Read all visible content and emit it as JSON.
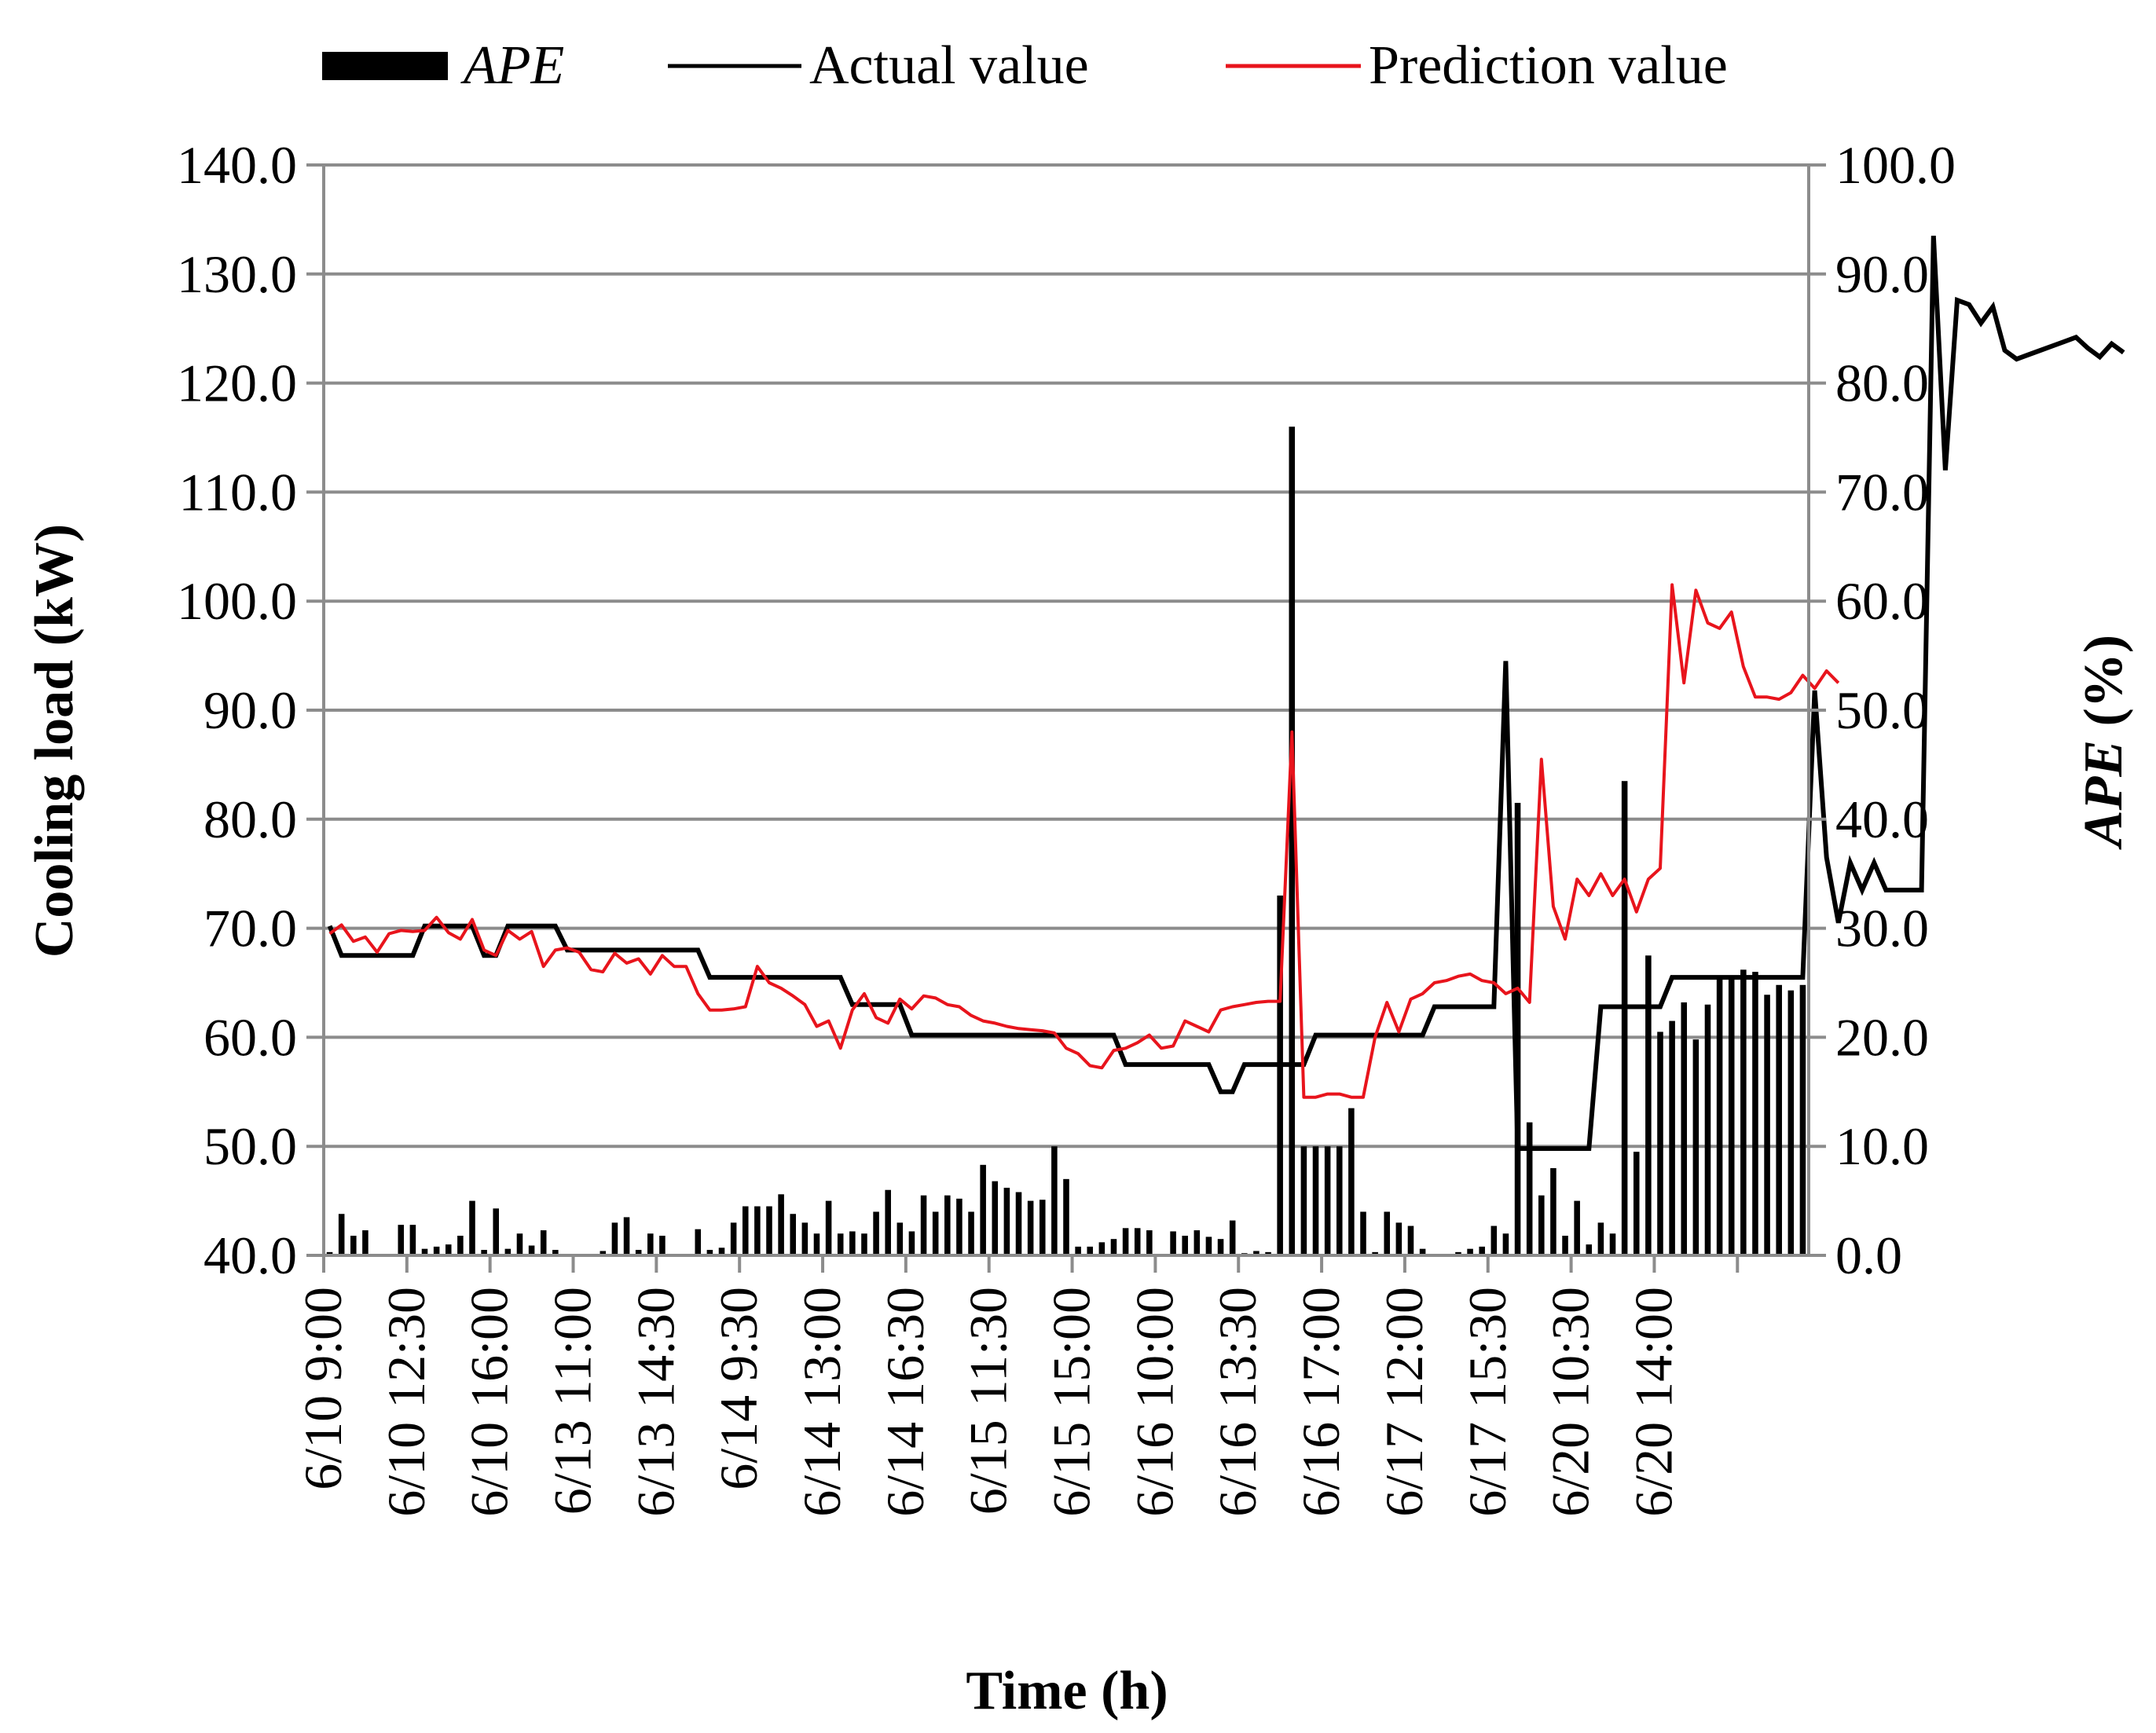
{
  "chart_data": {
    "type": "bar+line",
    "xlabel": "Time (h)",
    "ylabel_left": "Cooling load (kW)",
    "ylabel_right": "APE (%)",
    "ylim_left": [
      40,
      140
    ],
    "ylim_right": [
      0,
      100
    ],
    "left_ticks": [
      "40.0",
      "50.0",
      "60.0",
      "70.0",
      "80.0",
      "90.0",
      "100.0",
      "110.0",
      "120.0",
      "130.0",
      "140.0"
    ],
    "right_ticks": [
      "0.0",
      "10.0",
      "20.0",
      "30.0",
      "40.0",
      "50.0",
      "60.0",
      "70.0",
      "80.0",
      "90.0",
      "100.0"
    ],
    "x_tick_labels": [
      "6/10 9:00",
      "6/10 12:30",
      "6/10 16:00",
      "6/13 11:00",
      "6/13 14:30",
      "6/14 9:30",
      "6/14 13:00",
      "6/14 16:30",
      "6/15 11:30",
      "6/15 15:00",
      "6/16 10:00",
      "6/16 13:30",
      "6/16 17:00",
      "6/17 12:00",
      "6/17 15:30",
      "6/20 10:30",
      "6/20 14:00"
    ],
    "x_tick_every": 7,
    "legend": {
      "ape": "APE",
      "actual": "Actual value",
      "prediction": "Prediction value"
    },
    "colors": {
      "ape": "#000000",
      "actual": "#000000",
      "prediction": "#e8141c",
      "grid": "#8c8c8c"
    },
    "series": [
      {
        "name": "Actual value",
        "axis": "left",
        "values": [
          70.2,
          67.5,
          67.5,
          67.5,
          67.5,
          67.5,
          67.5,
          67.5,
          70.2,
          70.2,
          70.2,
          70.2,
          70.2,
          67.5,
          67.5,
          70.2,
          70.2,
          70.2,
          70.2,
          70.2,
          68.0,
          68.0,
          68.0,
          68.0,
          68.0,
          68.0,
          68.0,
          68.0,
          68.0,
          68.0,
          68.0,
          68.0,
          65.5,
          65.5,
          65.5,
          65.5,
          65.5,
          65.5,
          65.5,
          65.5,
          65.5,
          65.5,
          65.5,
          65.5,
          63.0,
          63.0,
          63.0,
          63.0,
          63.0,
          60.2,
          60.2,
          60.2,
          60.2,
          60.2,
          60.2,
          60.2,
          60.2,
          60.2,
          60.2,
          60.2,
          60.2,
          60.2,
          60.2,
          60.2,
          60.2,
          60.2,
          60.2,
          57.5,
          57.5,
          57.5,
          57.5,
          57.5,
          57.5,
          57.5,
          57.5,
          55.0,
          55.0,
          57.5,
          57.5,
          57.5,
          57.5,
          57.5,
          57.5,
          60.2,
          60.2,
          60.2,
          60.2,
          60.2,
          60.2,
          60.2,
          60.2,
          60.2,
          60.2,
          62.8,
          62.8,
          62.8,
          62.8,
          62.8,
          62.8,
          94.5,
          49.8,
          49.8,
          49.8,
          49.8,
          49.8,
          49.8,
          49.8,
          62.8,
          62.8,
          62.8,
          62.8,
          62.8,
          62.8,
          65.5,
          65.5,
          65.5,
          65.5,
          65.5,
          65.5,
          65.5,
          65.5,
          65.5,
          65.5,
          65.5,
          65.5,
          91.8,
          76.5,
          70.5,
          76.0,
          73.5,
          76.0,
          73.5,
          73.5,
          73.5,
          73.5,
          133.5,
          112.0,
          127.6,
          127.2,
          125.5,
          127.0,
          123.0,
          122.2,
          122.6,
          123.0,
          123.4,
          123.8,
          124.2,
          123.2,
          122.4,
          123.6,
          122.8
        ]
      },
      {
        "name": "Prediction value",
        "axis": "left",
        "values": [
          69.5,
          70.3,
          68.8,
          69.2,
          67.8,
          69.5,
          69.8,
          69.7,
          69.8,
          71.0,
          69.6,
          69.0,
          70.8,
          68.0,
          67.5,
          69.8,
          69.0,
          69.7,
          66.5,
          68.0,
          68.2,
          67.8,
          66.2,
          66.0,
          67.7,
          66.8,
          67.2,
          65.8,
          67.5,
          66.5,
          66.5,
          64.0,
          62.5,
          62.5,
          62.6,
          62.8,
          66.5,
          65.0,
          64.5,
          63.8,
          63.0,
          61.0,
          61.5,
          59.0,
          62.5,
          64.0,
          61.8,
          61.3,
          63.5,
          62.6,
          63.8,
          63.6,
          63.0,
          62.8,
          62.0,
          61.5,
          61.3,
          61.0,
          60.8,
          60.7,
          60.6,
          60.4,
          59.0,
          58.5,
          57.4,
          57.2,
          58.8,
          59.0,
          59.5,
          60.2,
          59.0,
          59.2,
          61.5,
          61.0,
          60.5,
          62.5,
          62.8,
          63.0,
          63.2,
          63.3,
          63.3,
          88.0,
          54.5,
          54.5,
          54.8,
          54.8,
          54.5,
          54.5,
          60.0,
          63.2,
          60.5,
          63.5,
          64.0,
          65.0,
          65.2,
          65.6,
          65.8,
          65.2,
          65.0,
          64.0,
          64.5,
          63.2,
          85.5,
          72.0,
          69.0,
          74.5,
          73.0,
          75.0,
          73.0,
          74.5,
          71.5,
          74.5,
          75.5,
          101.5,
          92.5,
          101.0,
          98.0,
          97.5,
          99.0,
          94.0,
          91.2,
          91.2,
          91.0,
          91.6,
          93.2,
          92.0,
          93.6,
          92.5
        ]
      },
      {
        "name": "APE",
        "axis": "right",
        "type": "bar",
        "values": [
          0.3,
          3.8,
          1.8,
          2.3,
          0.0,
          0.0,
          2.8,
          2.8,
          0.6,
          0.8,
          1.0,
          1.8,
          5.0,
          0.5,
          4.3,
          0.6,
          2.0,
          0.9,
          2.3,
          0.5,
          0.0,
          0.0,
          0.0,
          0.4,
          3.0,
          3.5,
          0.5,
          2.0,
          1.8,
          0.0,
          0.0,
          2.4,
          0.5,
          0.7,
          3.0,
          4.5,
          4.5,
          4.5,
          5.6,
          3.8,
          3.0,
          2.0,
          5.0,
          2.0,
          2.2,
          2.0,
          4.0,
          6.0,
          3.0,
          2.2,
          5.5,
          4.0,
          5.5,
          5.2,
          4.0,
          8.3,
          6.8,
          6.2,
          5.8,
          5.0,
          5.1,
          10.0,
          7.0,
          0.8,
          0.8,
          1.2,
          1.5,
          2.5,
          2.5,
          2.3,
          0.0,
          2.2,
          1.8,
          2.3,
          1.7,
          1.5,
          3.2,
          0.2,
          0.4,
          0.3,
          33.0,
          76.0,
          10.0,
          10.0,
          10.0,
          10.0,
          13.5,
          4.0,
          0.3,
          4.0,
          3.0,
          2.7,
          0.6,
          0.0,
          0.0,
          0.3,
          0.6,
          0.8,
          2.7,
          2.0,
          41.5,
          12.2,
          5.5,
          8.0,
          1.8,
          5.0,
          1.0,
          3.0,
          2.0,
          43.5,
          9.5,
          27.5,
          20.5,
          21.5,
          23.2,
          19.8,
          23.0,
          25.5,
          25.5,
          26.2,
          26.0,
          23.9,
          24.8,
          24.3,
          24.8
        ]
      }
    ]
  }
}
